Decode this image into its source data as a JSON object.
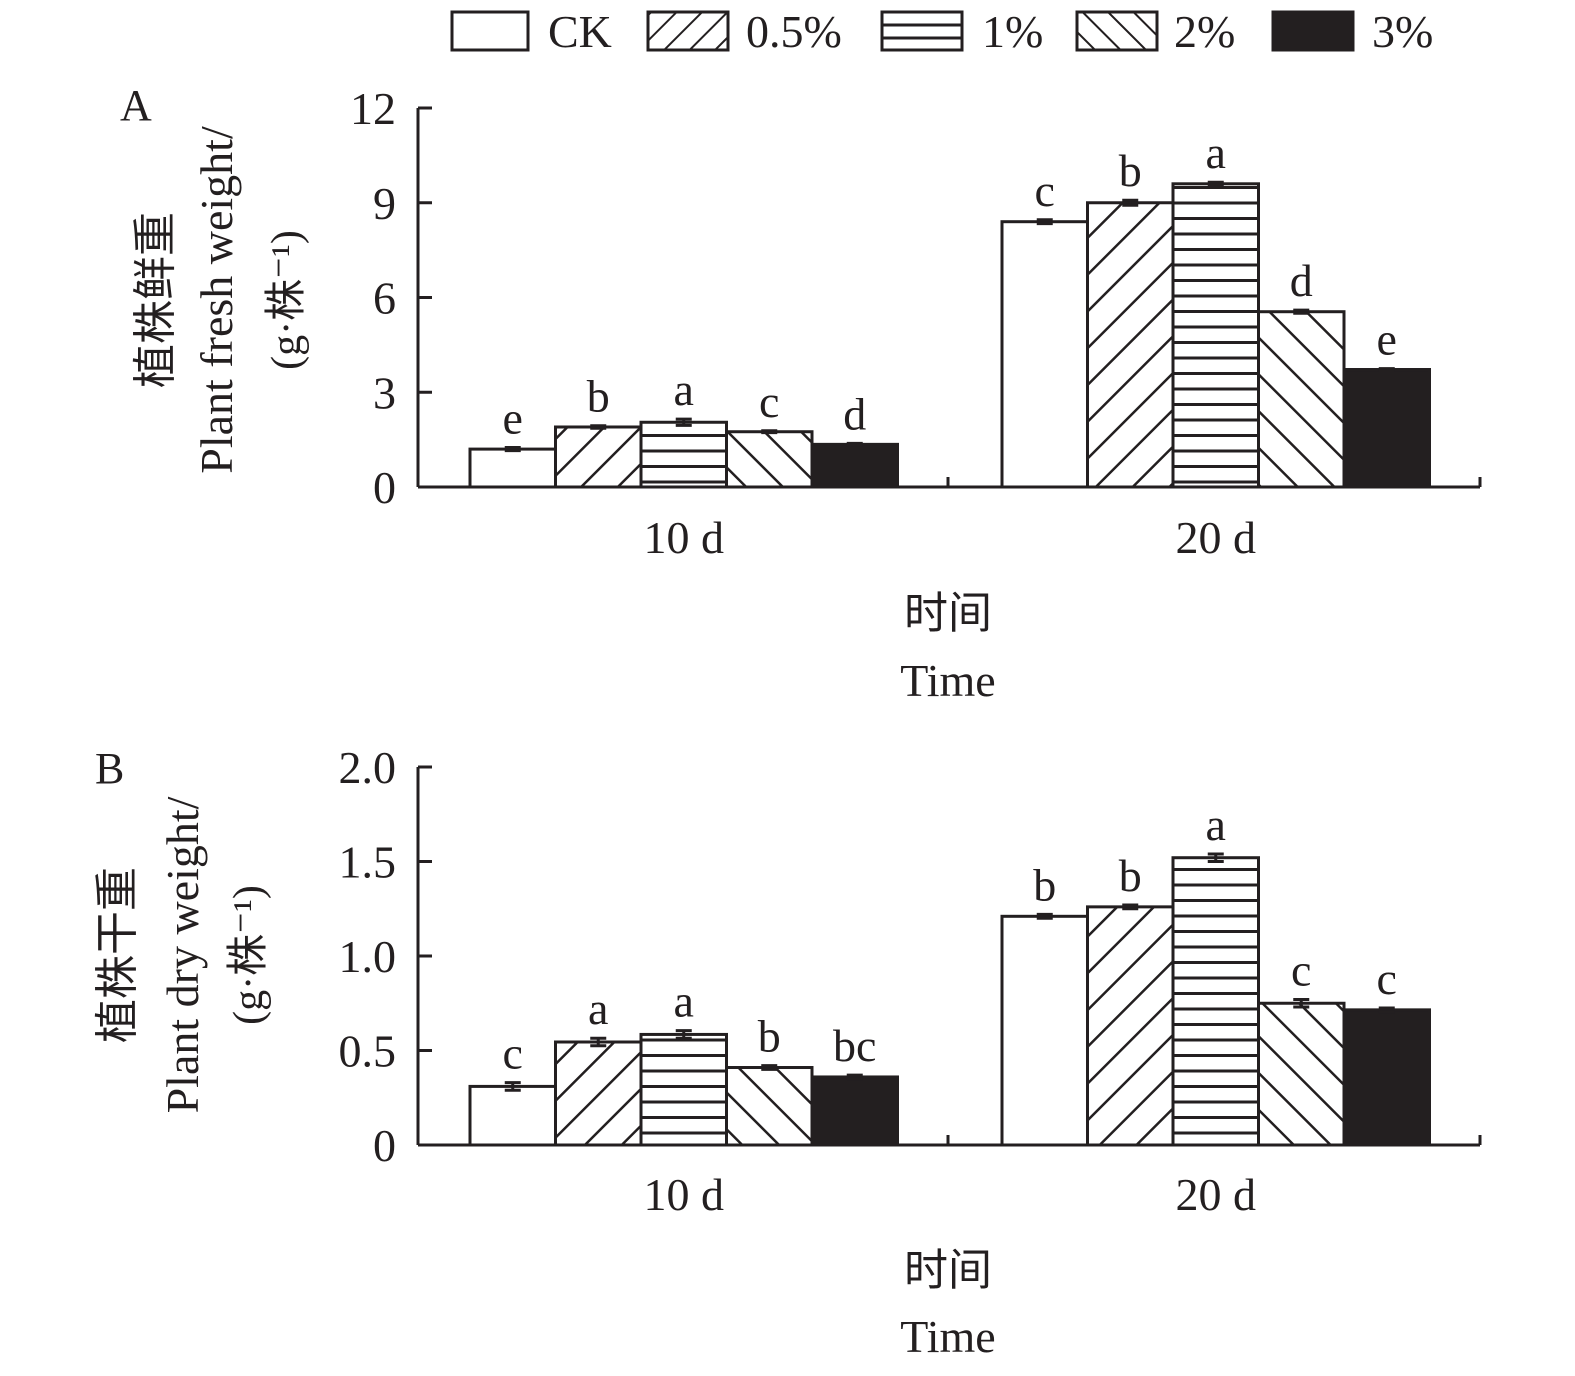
{
  "legend": [
    {
      "label": "CK",
      "pattern": "none"
    },
    {
      "label": "0.5%",
      "pattern": "diag-up"
    },
    {
      "label": "1%",
      "pattern": "horizontal"
    },
    {
      "label": "2%",
      "pattern": "diag-down"
    },
    {
      "label": "3%",
      "pattern": "solid"
    }
  ],
  "colors": {
    "ink": "#231f20",
    "background": "#ffffff"
  },
  "chart_data": [
    {
      "type": "bar",
      "panel_label": "A",
      "ylabel_cn": "植株鲜重",
      "ylabel_en": "Plant fresh weight/",
      "ylabel_unit": "(g·株⁻¹)",
      "xlabel_cn": "时间",
      "xlabel_en": "Time",
      "categories": [
        "10 d",
        "20 d"
      ],
      "ylim": [
        0,
        12
      ],
      "yticks": [
        0,
        3,
        6,
        9,
        12
      ],
      "ytick_labels": [
        "0",
        "3",
        "6",
        "9",
        "12"
      ],
      "series": [
        {
          "name": "CK",
          "values": [
            1.2,
            8.4
          ],
          "errors": [
            0.05,
            0.06
          ],
          "letters": [
            "e",
            "c"
          ]
        },
        {
          "name": "0.5%",
          "values": [
            1.9,
            9.0
          ],
          "errors": [
            0.04,
            0.08
          ],
          "letters": [
            "b",
            "b"
          ]
        },
        {
          "name": "1%",
          "values": [
            2.05,
            9.6
          ],
          "errors": [
            0.1,
            0.05
          ],
          "letters": [
            "a",
            "a"
          ]
        },
        {
          "name": "2%",
          "values": [
            1.75,
            5.55
          ],
          "errors": [
            0.03,
            0.05
          ],
          "letters": [
            "c",
            "d"
          ]
        },
        {
          "name": "3%",
          "values": [
            1.35,
            3.72
          ],
          "errors": [
            0.03,
            0.03
          ],
          "letters": [
            "d",
            "e"
          ]
        }
      ]
    },
    {
      "type": "bar",
      "panel_label": "B",
      "ylabel_cn": "植株干重",
      "ylabel_en": "Plant dry weight/",
      "ylabel_unit": "(g·株⁻¹)",
      "xlabel_cn": "时间",
      "xlabel_en": "Time",
      "categories": [
        "10 d",
        "20 d"
      ],
      "ylim": [
        0,
        2.0
      ],
      "yticks": [
        0,
        0.5,
        1.0,
        1.5,
        2.0
      ],
      "ytick_labels": [
        "0",
        "0.5",
        "1.0",
        "1.5",
        "2.0"
      ],
      "series": [
        {
          "name": "CK",
          "values": [
            0.31,
            1.21
          ],
          "errors": [
            0.02,
            0.01
          ],
          "letters": [
            "c",
            "b"
          ]
        },
        {
          "name": "0.5%",
          "values": [
            0.545,
            1.26
          ],
          "errors": [
            0.02,
            0.01
          ],
          "letters": [
            "a",
            "b"
          ]
        },
        {
          "name": "1%",
          "values": [
            0.585,
            1.52
          ],
          "errors": [
            0.02,
            0.02
          ],
          "letters": [
            "a",
            "a"
          ]
        },
        {
          "name": "2%",
          "values": [
            0.41,
            0.75
          ],
          "errors": [
            0.01,
            0.02
          ],
          "letters": [
            "b",
            "c"
          ]
        },
        {
          "name": "3%",
          "values": [
            0.36,
            0.715
          ],
          "errors": [
            0.01,
            0.01
          ],
          "letters": [
            "bc",
            "c"
          ]
        }
      ]
    }
  ]
}
